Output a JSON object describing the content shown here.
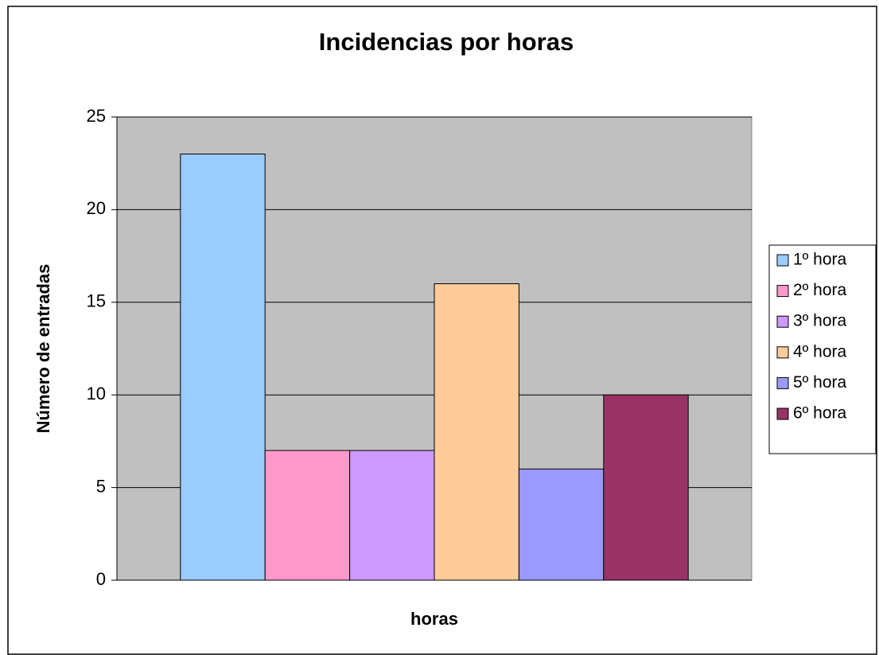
{
  "chart_data": {
    "type": "bar",
    "title": "Incidencias por horas",
    "x_label": "horas",
    "y_label": "Número de entradas",
    "categories": [
      null
    ],
    "series": [
      {
        "name": "1º hora",
        "color": "#99ccff",
        "values": [
          23
        ]
      },
      {
        "name": "2º hora",
        "color": "#ff99cc",
        "values": [
          7
        ]
      },
      {
        "name": "3º hora",
        "color": "#cc99ff",
        "values": [
          7
        ]
      },
      {
        "name": "4º hora",
        "color": "#ffcc99",
        "values": [
          16
        ]
      },
      {
        "name": "5º hora",
        "color": "#9999ff",
        "values": [
          6
        ]
      },
      {
        "name": "6º hora",
        "color": "#993366",
        "values": [
          10
        ]
      }
    ],
    "ylim": [
      0,
      25
    ],
    "yticks": [
      0,
      5,
      10,
      15,
      20,
      25
    ],
    "grid": true,
    "plot_background": "#c0c0c0",
    "legend_position": "right"
  }
}
